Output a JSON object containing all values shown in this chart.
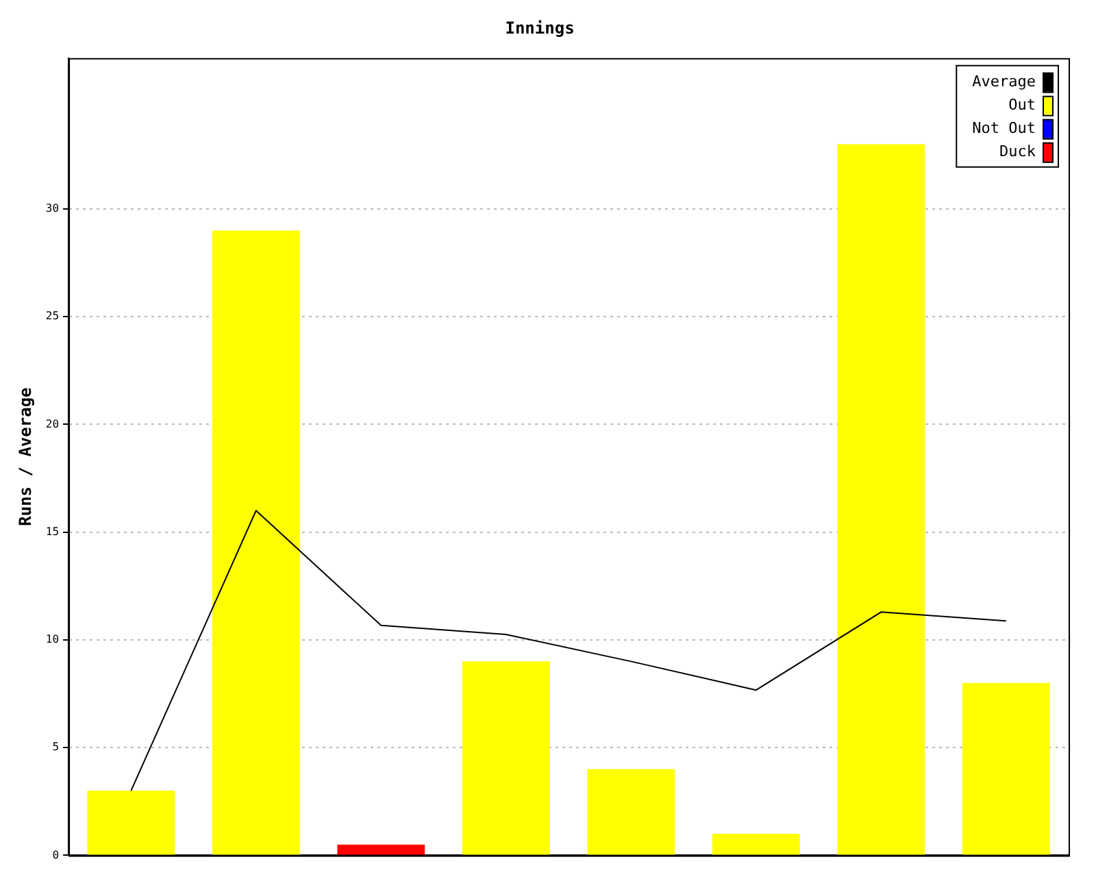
{
  "chart_data": {
    "type": "bar",
    "title": "Innings",
    "ylabel": "Runs / Average",
    "categories": [
      null,
      null,
      null,
      null,
      null,
      null,
      null,
      null
    ],
    "stacked": true,
    "series": [
      {
        "name": "Average",
        "type": "line",
        "color": "#000000",
        "values": [
          3,
          16,
          10.67,
          10.25,
          9,
          7.67,
          11.29,
          10.88
        ]
      },
      {
        "name": "Out",
        "color": "#ffff00",
        "values": [
          3,
          29,
          null,
          9,
          4,
          1,
          33,
          8
        ]
      },
      {
        "name": "Not Out",
        "color": "#0000ff",
        "values": [
          null,
          null,
          null,
          null,
          null,
          null,
          null,
          null
        ]
      },
      {
        "name": "Duck",
        "color": "#ff0000",
        "values": [
          null,
          null,
          0.5,
          null,
          null,
          null,
          null,
          null
        ]
      }
    ],
    "ylim": [
      0,
      37
    ],
    "yticks": [
      0,
      5,
      10,
      15,
      20,
      25,
      30
    ],
    "grid": "y",
    "legend": "top right",
    "marker": "none",
    "tick_labels": "y"
  }
}
